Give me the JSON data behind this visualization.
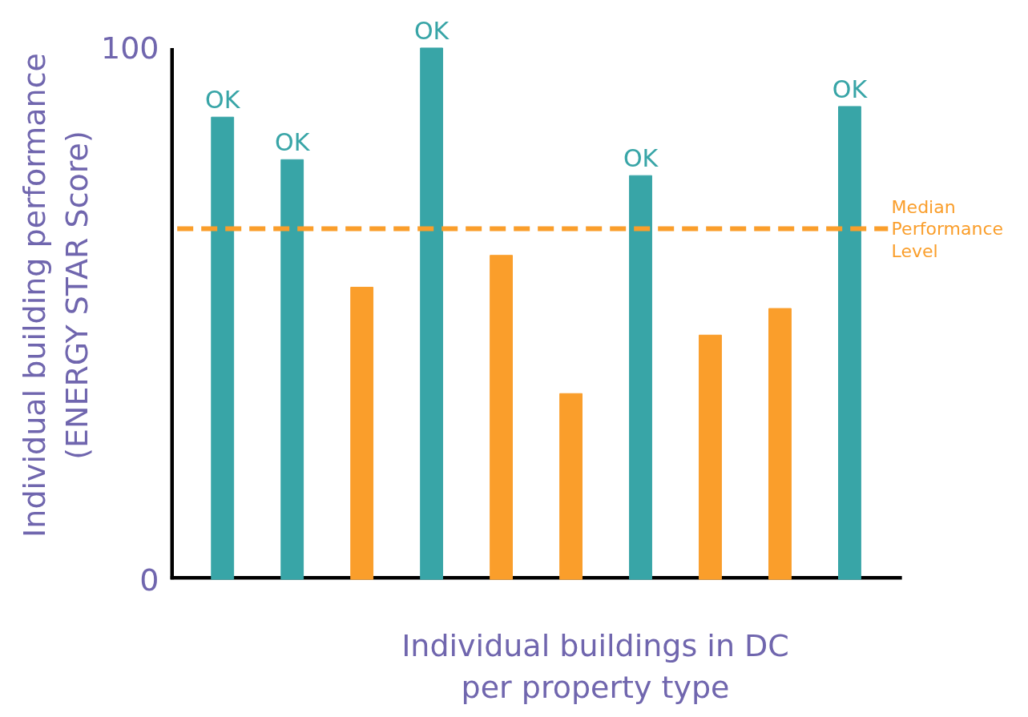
{
  "chart_data": {
    "type": "bar",
    "xlabel": "Individual buildings in DC\nper property type",
    "ylabel": "Individual building performance\n(ENERGY STAR Score)",
    "categories": [
      null,
      null,
      null,
      null,
      null,
      null,
      null,
      null,
      null,
      null
    ],
    "values": [
      87,
      79,
      55,
      100,
      61,
      35,
      76,
      46,
      51,
      89
    ],
    "colors": [
      "#38a5a7",
      "#38a5a7",
      "#fa9e2b",
      "#38a5a7",
      "#fa9e2b",
      "#fa9e2b",
      "#38a5a7",
      "#fa9e2b",
      "#fa9e2b",
      "#38a5a7"
    ],
    "value_labels": [
      "OK",
      "OK",
      null,
      "OK",
      null,
      null,
      "OK",
      null,
      null,
      "OK"
    ],
    "ylim": [
      0,
      100
    ],
    "yticks": [
      0,
      100
    ],
    "tick_labels": "y",
    "ref_lines": [
      {
        "axis": "y",
        "value": 66,
        "label": "Median\nPerformance\nLevel",
        "color": "#fa9e2b",
        "line_style": "dashed"
      }
    ]
  }
}
